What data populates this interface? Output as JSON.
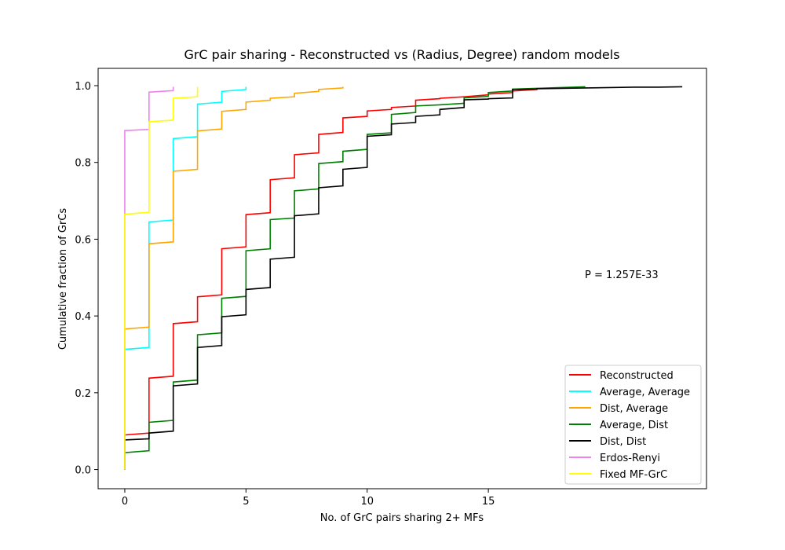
{
  "chart_data": {
    "type": "line",
    "title": "GrC pair sharing - Reconstructed vs (Radius, Degree) random models",
    "xlabel": "No. of GrC pairs sharing 2+ MFs",
    "ylabel": "Cumulative fraction of GrCs",
    "xlim": [
      -1.1,
      24
    ],
    "ylim": [
      -0.05,
      1.045
    ],
    "xticks": [
      0,
      5,
      10,
      15
    ],
    "yticks": [
      0.0,
      0.2,
      0.4,
      0.6,
      0.8,
      1.0
    ],
    "xtick_labels": [
      "0",
      "5",
      "10",
      "15"
    ],
    "ytick_labels": [
      "0.0",
      "0.2",
      "0.4",
      "0.6",
      "0.8",
      "1.0"
    ],
    "grid": false,
    "legend_position": "lower-right",
    "annotation": "P = 1.257E-33",
    "series": [
      {
        "name": "Reconstructed",
        "color": "#ff0000",
        "x": [
          0,
          1,
          2,
          3,
          4,
          5,
          6,
          7,
          8,
          9,
          10,
          11,
          12,
          13,
          14,
          15,
          16,
          17
        ],
        "y_start": [
          0.09,
          0.238,
          0.38,
          0.45,
          0.575,
          0.664,
          0.755,
          0.82,
          0.873,
          0.916,
          0.934,
          0.943,
          0.962,
          0.967,
          0.971,
          0.978,
          0.986,
          0.992
        ],
        "y_end": [
          0.095,
          0.243,
          0.385,
          0.455,
          0.58,
          0.669,
          0.76,
          0.825,
          0.878,
          0.92,
          0.938,
          0.947,
          0.966,
          0.971,
          0.976,
          0.982,
          0.99,
          0.992
        ]
      },
      {
        "name": "Average, Average",
        "color": "#00ffff",
        "x": [
          0,
          1,
          2,
          3,
          4,
          5
        ],
        "y_start": [
          0.313,
          0.645,
          0.862,
          0.952,
          0.985,
          0.993
        ],
        "y_end": [
          0.318,
          0.65,
          0.867,
          0.957,
          0.99,
          0.997
        ]
      },
      {
        "name": "Dist, Average",
        "color": "#ffa500",
        "x": [
          0,
          1,
          2,
          3,
          4,
          5,
          6,
          7,
          8,
          9
        ],
        "y_start": [
          0.366,
          0.588,
          0.777,
          0.882,
          0.933,
          0.957,
          0.967,
          0.98,
          0.99,
          0.996
        ],
        "y_end": [
          0.371,
          0.593,
          0.782,
          0.887,
          0.938,
          0.962,
          0.971,
          0.985,
          0.994,
          0.997
        ]
      },
      {
        "name": "Average, Dist",
        "color": "#008000",
        "x": [
          0,
          1,
          2,
          3,
          4,
          5,
          6,
          7,
          8,
          9,
          10,
          11,
          12,
          13,
          14,
          15,
          16,
          17,
          18,
          19
        ],
        "y_start": [
          0.044,
          0.123,
          0.228,
          0.351,
          0.446,
          0.57,
          0.651,
          0.726,
          0.797,
          0.829,
          0.873,
          0.925,
          0.947,
          0.95,
          0.968,
          0.982,
          0.991,
          0.993,
          0.995,
          0.997
        ],
        "y_end": [
          0.049,
          0.128,
          0.233,
          0.356,
          0.451,
          0.575,
          0.655,
          0.731,
          0.802,
          0.834,
          0.877,
          0.93,
          0.95,
          0.954,
          0.972,
          0.986,
          0.993,
          0.995,
          0.997,
          0.997
        ]
      },
      {
        "name": "Dist, Dist",
        "color": "#000000",
        "x": [
          0,
          1,
          2,
          3,
          4,
          5,
          6,
          7,
          8,
          9,
          10,
          11,
          12,
          13,
          14,
          15,
          16,
          17,
          18,
          19,
          20,
          21,
          22,
          23
        ],
        "y_start": [
          0.077,
          0.095,
          0.218,
          0.318,
          0.398,
          0.469,
          0.548,
          0.661,
          0.734,
          0.782,
          0.868,
          0.9,
          0.92,
          0.938,
          0.963,
          0.966,
          0.99,
          0.992,
          0.993,
          0.994,
          0.995,
          0.996,
          0.996,
          0.997
        ],
        "y_end": [
          0.08,
          0.1,
          0.223,
          0.323,
          0.403,
          0.474,
          0.553,
          0.666,
          0.739,
          0.787,
          0.872,
          0.904,
          0.924,
          0.943,
          0.965,
          0.968,
          0.991,
          0.993,
          0.994,
          0.995,
          0.996,
          0.996,
          0.997,
          0.997
        ]
      },
      {
        "name": "Erdos-Renyi",
        "color": "#ee82ee",
        "x": [
          0,
          1,
          2
        ],
        "y_start": [
          0.883,
          0.983,
          0.995
        ],
        "y_end": [
          0.886,
          0.987,
          0.997
        ]
      },
      {
        "name": "Fixed MF-GrC",
        "color": "#ffff00",
        "x": [
          0,
          1,
          2,
          3
        ],
        "y_start": [
          0.665,
          0.906,
          0.967,
          0.997
        ],
        "y_end": [
          0.67,
          0.91,
          0.971,
          0.997
        ]
      }
    ]
  }
}
